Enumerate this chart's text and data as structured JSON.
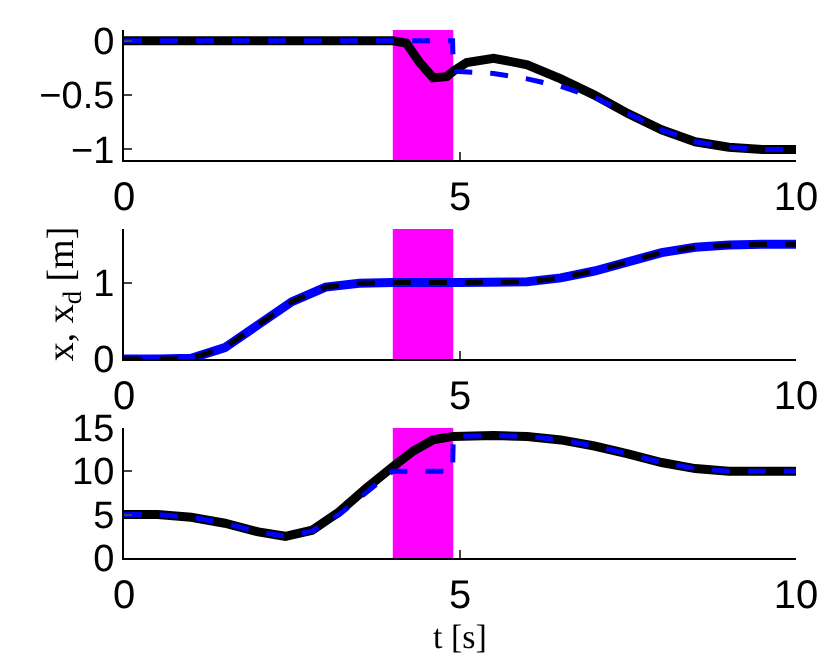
{
  "chart_data": [
    {
      "type": "line",
      "xlim": [
        0,
        10
      ],
      "xticks": [
        0,
        5,
        10
      ],
      "ylim": [
        -1.1,
        0.1
      ],
      "yticks": [
        {
          "value": -1,
          "label": "−1"
        },
        {
          "value": -0.5,
          "label": "−0.5"
        },
        0
      ],
      "grid": false,
      "bands": [
        {
          "axis": "x",
          "from": 4,
          "to": 4.9,
          "color": "#ff00ff"
        }
      ],
      "series": [
        {
          "color": "#000000",
          "line_style": "solid",
          "x": [
            0,
            1,
            2,
            3,
            4,
            4.2,
            4.4,
            4.6,
            4.8,
            4.9,
            5.1,
            5.5,
            6,
            6.5,
            7,
            7.5,
            8,
            8.5,
            9,
            9.5,
            10
          ],
          "values": [
            0,
            0,
            0,
            0,
            0,
            -0.02,
            -0.2,
            -0.34,
            -0.33,
            -0.28,
            -0.2,
            -0.16,
            -0.22,
            -0.35,
            -0.5,
            -0.67,
            -0.82,
            -0.93,
            -0.98,
            -1,
            -1
          ]
        },
        {
          "color": "#0000ff",
          "line_style": "dashed",
          "x": [
            0,
            1,
            2,
            3,
            4,
            4.5,
            4.89,
            4.9,
            5.5,
            6,
            6.5,
            7,
            7.5,
            8,
            8.5,
            9,
            9.5,
            10
          ],
          "values": [
            0,
            0,
            0,
            0,
            0,
            0,
            0,
            -0.28,
            -0.3,
            -0.35,
            -0.42,
            -0.52,
            -0.67,
            -0.82,
            -0.93,
            -0.98,
            -1,
            -1
          ]
        }
      ]
    },
    {
      "type": "line",
      "xlim": [
        0,
        10
      ],
      "xticks": [
        0,
        5,
        10
      ],
      "ylim": [
        0,
        1.7
      ],
      "yticks": [
        0,
        1
      ],
      "grid": false,
      "ylabel": "x, x$_{d}$ [m]",
      "bands": [
        {
          "axis": "x",
          "from": 4,
          "to": 4.9,
          "color": "#ff00ff"
        }
      ],
      "series": [
        {
          "color": "#0000ff",
          "line_style": "solid",
          "x": [
            0,
            0.5,
            1,
            1.5,
            2,
            2.5,
            3,
            3.5,
            4,
            5,
            6,
            6.5,
            7,
            7.5,
            8,
            8.5,
            9,
            9.5,
            10
          ],
          "values": [
            0,
            0,
            0.01,
            0.15,
            0.45,
            0.75,
            0.94,
            0.99,
            1,
            1,
            1.01,
            1.06,
            1.15,
            1.27,
            1.39,
            1.46,
            1.49,
            1.5,
            1.5
          ]
        },
        {
          "color": "#000000",
          "line_style": "dashed",
          "x": [
            0,
            0.5,
            1,
            1.5,
            2,
            2.5,
            3,
            3.5,
            4,
            5,
            6,
            6.5,
            7,
            7.5,
            8,
            8.5,
            9,
            9.5,
            10
          ],
          "values": [
            0,
            0,
            0.01,
            0.15,
            0.45,
            0.75,
            0.94,
            0.99,
            1,
            1,
            1.01,
            1.06,
            1.15,
            1.27,
            1.39,
            1.46,
            1.49,
            1.5,
            1.5
          ]
        }
      ]
    },
    {
      "type": "line",
      "xlim": [
        0,
        10
      ],
      "xticks": [
        0,
        5,
        10
      ],
      "ylim": [
        0,
        15
      ],
      "yticks": [
        0,
        5,
        10,
        15
      ],
      "grid": false,
      "xlabel": "t [s]",
      "bands": [
        {
          "axis": "x",
          "from": 4,
          "to": 4.9,
          "color": "#ff00ff"
        }
      ],
      "series": [
        {
          "color": "#000000",
          "line_style": "solid",
          "x": [
            0,
            0.5,
            1,
            1.5,
            2,
            2.4,
            2.8,
            3.2,
            3.6,
            4,
            4.3,
            4.6,
            4.9,
            5.5,
            6,
            6.5,
            7,
            7.5,
            8,
            8.5,
            9,
            9.5,
            10
          ],
          "values": [
            5,
            5,
            4.7,
            4,
            3,
            2.5,
            3.2,
            5.3,
            8,
            10.5,
            12.3,
            13.6,
            14,
            14.1,
            14,
            13.6,
            12.9,
            12,
            11,
            10.3,
            10,
            10,
            10
          ]
        },
        {
          "color": "#0000ff",
          "line_style": "dashed",
          "x": [
            0,
            0.5,
            1,
            1.5,
            2,
            2.4,
            2.8,
            3.2,
            3.6,
            3.9,
            4,
            4.5,
            4.89,
            4.9,
            5.5,
            6,
            6.5,
            7,
            7.5,
            8,
            8.5,
            9,
            9.5,
            10
          ],
          "values": [
            5,
            5,
            4.7,
            4,
            3,
            2.5,
            3.1,
            5,
            7.5,
            9.4,
            10,
            10,
            10,
            14,
            14.1,
            14,
            13.6,
            12.9,
            12,
            11,
            10.3,
            10,
            10,
            10
          ]
        }
      ]
    }
  ]
}
